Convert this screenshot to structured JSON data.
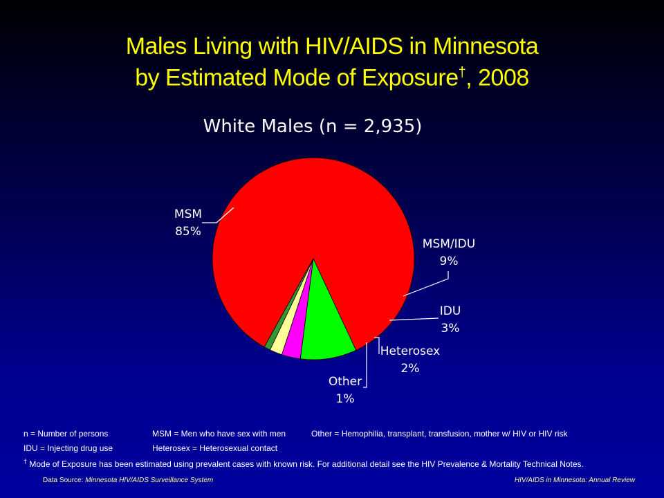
{
  "title": {
    "line1": "Males Living with HIV/AIDS in Minnesota",
    "line2_main": "by Estimated Mode of Exposure",
    "line2_dagger": "†",
    "line2_end": ", 2008"
  },
  "chart_data": {
    "type": "pie",
    "title": "White Males (n = 2,935)",
    "slices": [
      {
        "name": "MSM",
        "value": 85,
        "label": "85%",
        "color": "#ff0000"
      },
      {
        "name": "MSM/IDU",
        "value": 9,
        "label": "9%",
        "color": "#00ff00"
      },
      {
        "name": "IDU",
        "value": 3,
        "label": "3%",
        "color": "#ff00ff"
      },
      {
        "name": "Heterosex",
        "value": 2,
        "label": "2%",
        "color": "#ffff99"
      },
      {
        "name": "Other",
        "value": 1,
        "label": "1%",
        "color": "#339933"
      }
    ]
  },
  "notes": {
    "n_def": "n = Number of persons",
    "msm_def": "MSM = Men who have sex with men",
    "other_def": "Other = Hemophilia, transplant, transfusion, mother w/ HIV or HIV risk",
    "idu_def": "IDU = Injecting drug use",
    "hetero_def": "Heterosex = Heterosexual contact",
    "dagger": "†",
    "mode_note": "Mode of Exposure has been estimated using prevalent cases with known risk. For additional detail see the HIV Prevalence & Mortality Technical Notes."
  },
  "footer": {
    "source_label": "Data Source:",
    "source_value": "Minnesota HIV/AIDS Surveillance System",
    "report": "HIV/AIDS in Minnesota: Annual Review"
  }
}
